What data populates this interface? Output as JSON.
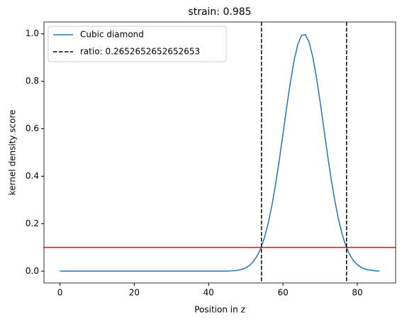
{
  "chart_data": {
    "type": "line",
    "title": "strain: 0.985",
    "x_label": "Position in z",
    "y_label": "kernel density score",
    "x": [
      0,
      44,
      45,
      46,
      47,
      48,
      49,
      50,
      51,
      52,
      53,
      54,
      55,
      56,
      57,
      58,
      59,
      60,
      61,
      62,
      63,
      64,
      65,
      66,
      67,
      68,
      69,
      70,
      71,
      72,
      73,
      74,
      75,
      76,
      77,
      78,
      79,
      80,
      81,
      82,
      83,
      84,
      85,
      86
    ],
    "series": [
      {
        "name": "Cubic diamond",
        "color": "#1f77b4",
        "values": [
          0,
          0,
          0,
          0.001,
          0.002,
          0.004,
          0.008,
          0.014,
          0.024,
          0.04,
          0.063,
          0.095,
          0.141,
          0.2,
          0.275,
          0.365,
          0.467,
          0.578,
          0.691,
          0.797,
          0.889,
          0.956,
          0.994,
          0.997,
          0.966,
          0.904,
          0.817,
          0.713,
          0.601,
          0.489,
          0.384,
          0.292,
          0.214,
          0.151,
          0.103,
          0.068,
          0.043,
          0.027,
          0.016,
          0.009,
          0.005,
          0.003,
          0.001,
          0.001
        ]
      }
    ],
    "vlines": {
      "name": "ratio: 0.2652652652652653",
      "color": "#000000",
      "values": [
        54.2,
        77.1
      ]
    },
    "hlines": [
      {
        "value": 0.1,
        "color": "#ff0000"
      }
    ],
    "xlim": [
      -4.3,
      90.3
    ],
    "xticks": [
      0,
      20,
      40,
      60,
      80
    ],
    "ylim": [
      -0.05,
      1.05
    ],
    "yticks": [
      {
        "value": 0,
        "label": "0.0"
      },
      {
        "value": 0.2,
        "label": "0.2"
      },
      {
        "value": 0.4,
        "label": "0.4"
      },
      {
        "value": 0.6,
        "label": "0.6"
      },
      {
        "value": 0.8,
        "label": "0.8"
      },
      {
        "value": 1,
        "label": "1.0"
      }
    ],
    "legend": "upper left"
  }
}
